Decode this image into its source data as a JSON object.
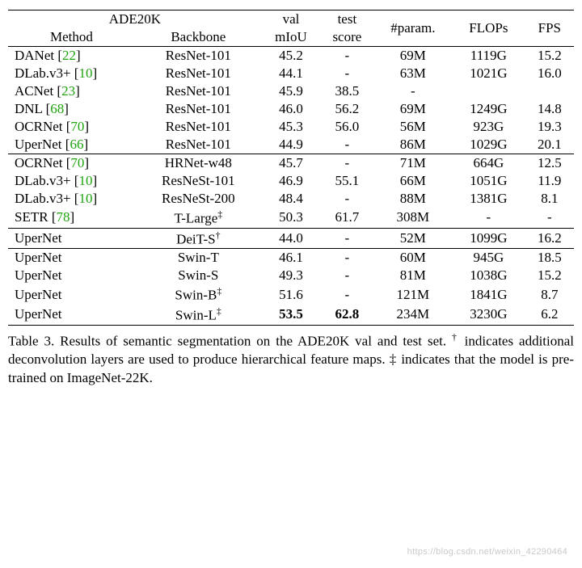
{
  "header": {
    "group_label": "ADE20K",
    "method": "Method",
    "backbone": "Backbone",
    "val": "val",
    "test": "test",
    "miou": "mIoU",
    "score": "score",
    "param": "#param.",
    "flops": "FLOPs",
    "fps": "FPS"
  },
  "cite_color": "#1fa40f",
  "row_border_color": "#000000",
  "font_family": "Times New Roman",
  "base_fontsize_pt": 13,
  "groups": [
    {
      "rows": [
        {
          "method": "DANet",
          "cite": "22",
          "backbone": "ResNet-101",
          "miou": "45.2",
          "score": "-",
          "param": "69M",
          "flops": "1119G",
          "fps": "15.2"
        },
        {
          "method": "DLab.v3+",
          "cite": "10",
          "backbone": "ResNet-101",
          "miou": "44.1",
          "score": "-",
          "param": "63M",
          "flops": "1021G",
          "fps": "16.0"
        },
        {
          "method": "ACNet",
          "cite": "23",
          "backbone": "ResNet-101",
          "miou": "45.9",
          "score": "38.5",
          "param": "-",
          "flops": "",
          "fps": ""
        },
        {
          "method": "DNL",
          "cite": "68",
          "backbone": "ResNet-101",
          "miou": "46.0",
          "score": "56.2",
          "param": "69M",
          "flops": "1249G",
          "fps": "14.8"
        },
        {
          "method": "OCRNet",
          "cite": "70",
          "backbone": "ResNet-101",
          "miou": "45.3",
          "score": "56.0",
          "param": "56M",
          "flops": "923G",
          "fps": "19.3"
        },
        {
          "method": "UperNet",
          "cite": "66",
          "backbone": "ResNet-101",
          "miou": "44.9",
          "score": "-",
          "param": "86M",
          "flops": "1029G",
          "fps": "20.1"
        }
      ]
    },
    {
      "rows": [
        {
          "method": "OCRNet",
          "cite": "70",
          "backbone": "HRNet-w48",
          "miou": "45.7",
          "score": "-",
          "param": "71M",
          "flops": "664G",
          "fps": "12.5"
        },
        {
          "method": "DLab.v3+",
          "cite": "10",
          "backbone": "ResNeSt-101",
          "miou": "46.9",
          "score": "55.1",
          "param": "66M",
          "flops": "1051G",
          "fps": "11.9"
        },
        {
          "method": "DLab.v3+",
          "cite": "10",
          "backbone": "ResNeSt-200",
          "miou": "48.4",
          "score": "-",
          "param": "88M",
          "flops": "1381G",
          "fps": "8.1"
        },
        {
          "method": "SETR",
          "cite": "78",
          "backbone": "T-Large",
          "backbone_sup": "‡",
          "miou": "50.3",
          "score": "61.7",
          "param": "308M",
          "flops": "-",
          "fps": "-"
        }
      ]
    },
    {
      "rows": [
        {
          "method": "UperNet",
          "backbone": "DeiT-S",
          "backbone_sup": "†",
          "miou": "44.0",
          "score": "-",
          "param": "52M",
          "flops": "1099G",
          "fps": "16.2"
        }
      ]
    },
    {
      "rows": [
        {
          "method": "UperNet",
          "backbone": "Swin-T",
          "miou": "46.1",
          "score": "-",
          "param": "60M",
          "flops": "945G",
          "fps": "18.5"
        },
        {
          "method": "UperNet",
          "backbone": "Swin-S",
          "miou": "49.3",
          "score": "-",
          "param": "81M",
          "flops": "1038G",
          "fps": "15.2"
        },
        {
          "method": "UperNet",
          "backbone": "Swin-B",
          "backbone_sup": "‡",
          "miou": "51.6",
          "score": "-",
          "param": "121M",
          "flops": "1841G",
          "fps": "8.7"
        },
        {
          "method": "UperNet",
          "backbone": "Swin-L",
          "backbone_sup": "‡",
          "miou": "53.5",
          "score": "62.8",
          "param": "234M",
          "flops": "3230G",
          "fps": "6.2",
          "bold": true
        }
      ]
    }
  ],
  "caption": {
    "label": "Table 3.",
    "text1": "Results of semantic segmentation on the ADE20K val and test set. ",
    "dagger": "†",
    "text2": " indicates additional deconvolution layers are used to produce hierarchical feature maps. ",
    "ddagger": "‡",
    "text3": " indicates that the model is pre-trained on ImageNet-22K."
  },
  "watermark": "https://blog.csdn.net/weixin_42290464"
}
